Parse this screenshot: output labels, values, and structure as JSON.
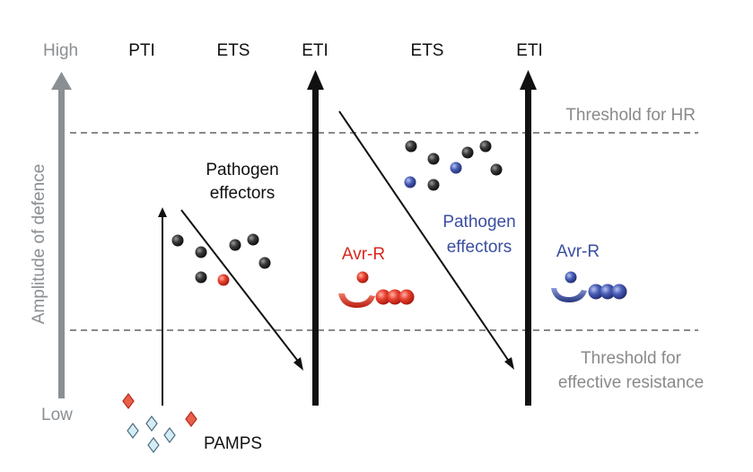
{
  "axis": {
    "high_label": "High",
    "low_label": "Low",
    "title": "Amplitude of defence"
  },
  "phases": {
    "pti": "PTI",
    "ets_1": "ETS",
    "eti_1": "ETI",
    "ets_2": "ETS",
    "eti_2": "ETI"
  },
  "thresholds": {
    "hr": "Threshold for HR",
    "resistance_line1": "Threshold for",
    "resistance_line2": "effective resistance"
  },
  "labels": {
    "effectors_black_line1": "Pathogen",
    "effectors_black_line2": "effectors",
    "effectors_blue_line1": "Pathogen",
    "effectors_blue_line2": "effectors",
    "avr_r_red": "Avr-R",
    "avr_r_blue": "Avr-R",
    "pamps": "PAMPS"
  },
  "colors": {
    "axis_gray": "#8a8f93",
    "threshold_gray": "#8a8a8a",
    "black": "#111111",
    "red": "#d8261c",
    "blue": "#3a4fa0",
    "diamond_red_fill": "#e8604a",
    "diamond_blue_fill": "#d6ecf4"
  }
}
